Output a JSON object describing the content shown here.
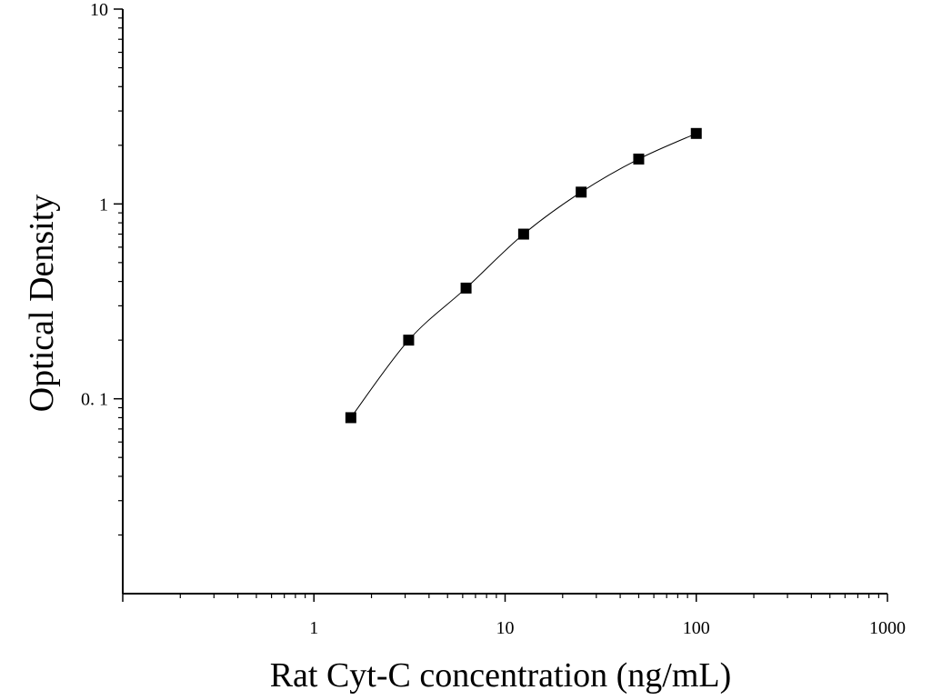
{
  "chart_data": {
    "type": "scatter",
    "title": "",
    "xlabel": "Rat Cyt-C concentration (ng/mL)",
    "ylabel": "Optical Density",
    "x_scale": "log",
    "y_scale": "log",
    "xlim": [
      0.1,
      1000
    ],
    "ylim": [
      0.01,
      10
    ],
    "x_tick_labels": [
      "1",
      "10",
      "100",
      "1000"
    ],
    "y_tick_labels": [
      "0. 1",
      "1",
      "10"
    ],
    "grid": false,
    "legend": "none",
    "series": [
      {
        "marker": "square",
        "color": "#000000",
        "fit_curve": true,
        "points": [
          {
            "x": 1.56,
            "y": 0.08
          },
          {
            "x": 3.13,
            "y": 0.2
          },
          {
            "x": 6.25,
            "y": 0.37
          },
          {
            "x": 12.5,
            "y": 0.7
          },
          {
            "x": 25,
            "y": 1.15
          },
          {
            "x": 50,
            "y": 1.7
          },
          {
            "x": 100,
            "y": 2.3
          }
        ]
      }
    ]
  }
}
